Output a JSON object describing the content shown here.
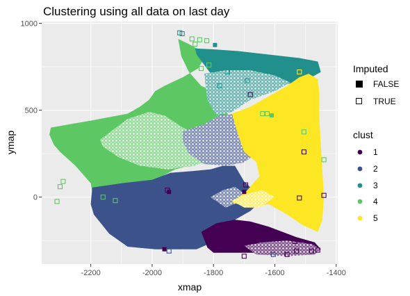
{
  "chart_data": {
    "type": "scatter",
    "title": "Clustering using all data on last day",
    "xlabel": "xmap",
    "ylabel": "ymap",
    "xlim": [
      -2360,
      -1395
    ],
    "ylim": [
      -385,
      1010
    ],
    "x_ticks": [
      -2200,
      -2000,
      -1800,
      -1600,
      -1400
    ],
    "y_ticks": [
      0,
      500,
      1000
    ],
    "x_tick_labels": [
      "-2200",
      "-2000",
      "-1800",
      "-1600",
      "-1400"
    ],
    "y_tick_labels": [
      "0",
      "500",
      "1000"
    ],
    "grid": true,
    "legend_placement": "right",
    "legends": {
      "imputed": {
        "title": "Imputed",
        "entries": [
          {
            "label": "FALSE",
            "marker": "filled-square"
          },
          {
            "label": "TRUE",
            "marker": "open-square"
          }
        ]
      },
      "clust": {
        "title": "clust",
        "entries": [
          {
            "label": "1",
            "color": "#440154"
          },
          {
            "label": "2",
            "color": "#3b528b"
          },
          {
            "label": "3",
            "color": "#21908c"
          },
          {
            "label": "4",
            "color": "#5dc863"
          },
          {
            "label": "5",
            "color": "#fde725"
          }
        ]
      }
    },
    "colors": {
      "1": "#440154",
      "2": "#3b528b",
      "3": "#21908c",
      "4": "#5dc863",
      "5": "#fde725",
      "panel": "#ebebeb",
      "grid": "#ffffff"
    },
    "regions": [
      {
        "cluster": "4",
        "imputed": false,
        "polygon": [
          [
            -1915,
            910
          ],
          [
            -1880,
            880
          ],
          [
            -1850,
            850
          ],
          [
            -1830,
            800
          ],
          [
            -1850,
            740
          ],
          [
            -1900,
            690
          ],
          [
            -1960,
            640
          ],
          [
            -1990,
            610
          ],
          [
            -2010,
            560
          ],
          [
            -2040,
            520
          ],
          [
            -2080,
            480
          ],
          [
            -2200,
            440
          ],
          [
            -2330,
            400
          ],
          [
            -2335,
            360
          ],
          [
            -2320,
            300
          ],
          [
            -2300,
            260
          ],
          [
            -2250,
            180
          ],
          [
            -2200,
            80
          ],
          [
            -2190,
            -30
          ],
          [
            -2140,
            -90
          ],
          [
            -2110,
            -170
          ],
          [
            -2085,
            -260
          ],
          [
            -2050,
            -290
          ],
          [
            -1975,
            -300
          ],
          [
            -1955,
            -215
          ],
          [
            -1970,
            -100
          ],
          [
            -1985,
            20
          ],
          [
            -1990,
            100
          ],
          [
            -1925,
            160
          ],
          [
            -1830,
            200
          ],
          [
            -1775,
            260
          ],
          [
            -1750,
            340
          ],
          [
            -1745,
            420
          ],
          [
            -1760,
            520
          ],
          [
            -1790,
            600
          ],
          [
            -1840,
            640
          ],
          [
            -1880,
            720
          ],
          [
            -1905,
            810
          ]
        ]
      },
      {
        "cluster": "4",
        "imputed": true,
        "polygon": [
          [
            -2170,
            330
          ],
          [
            -2080,
            450
          ],
          [
            -2010,
            490
          ],
          [
            -1960,
            470
          ],
          [
            -1900,
            400
          ],
          [
            -1850,
            360
          ],
          [
            -1810,
            300
          ],
          [
            -1800,
            230
          ],
          [
            -1860,
            180
          ],
          [
            -1950,
            160
          ],
          [
            -2040,
            180
          ],
          [
            -2110,
            230
          ],
          [
            -2160,
            290
          ]
        ]
      },
      {
        "cluster": "2",
        "imputed": false,
        "polygon": [
          [
            -2195,
            55
          ],
          [
            -2100,
            80
          ],
          [
            -2000,
            100
          ],
          [
            -1940,
            140
          ],
          [
            -1870,
            150
          ],
          [
            -1810,
            160
          ],
          [
            -1770,
            180
          ],
          [
            -1730,
            180
          ],
          [
            -1700,
            90
          ],
          [
            -1670,
            40
          ],
          [
            -1650,
            -30
          ],
          [
            -1680,
            -80
          ],
          [
            -1740,
            -140
          ],
          [
            -1785,
            -220
          ],
          [
            -1810,
            -265
          ],
          [
            -1855,
            -300
          ],
          [
            -1990,
            -300
          ],
          [
            -2080,
            -285
          ],
          [
            -2140,
            -210
          ],
          [
            -2190,
            -100
          ],
          [
            -2200,
            -40
          ]
        ]
      },
      {
        "cluster": "2",
        "imputed": true,
        "polygon": [
          [
            -1900,
            380
          ],
          [
            -1830,
            420
          ],
          [
            -1780,
            470
          ],
          [
            -1730,
            480
          ],
          [
            -1710,
            400
          ],
          [
            -1680,
            330
          ],
          [
            -1660,
            250
          ],
          [
            -1700,
            200
          ],
          [
            -1760,
            180
          ],
          [
            -1830,
            190
          ],
          [
            -1880,
            250
          ],
          [
            -1900,
            320
          ]
        ]
      },
      {
        "cluster": "2",
        "imputed": true,
        "polygon": [
          [
            -1810,
            0
          ],
          [
            -1770,
            40
          ],
          [
            -1730,
            60
          ],
          [
            -1700,
            20
          ],
          [
            -1720,
            -30
          ],
          [
            -1760,
            -60
          ]
        ]
      },
      {
        "cluster": "3",
        "imputed": false,
        "polygon": [
          [
            -1860,
            855
          ],
          [
            -1800,
            850
          ],
          [
            -1720,
            840
          ],
          [
            -1620,
            820
          ],
          [
            -1520,
            800
          ],
          [
            -1460,
            780
          ],
          [
            -1450,
            720
          ],
          [
            -1480,
            690
          ],
          [
            -1560,
            650
          ],
          [
            -1650,
            610
          ],
          [
            -1720,
            560
          ],
          [
            -1780,
            470
          ],
          [
            -1790,
            540
          ],
          [
            -1795,
            620
          ],
          [
            -1800,
            690
          ],
          [
            -1830,
            760
          ],
          [
            -1855,
            820
          ]
        ]
      },
      {
        "cluster": "3",
        "imputed": true,
        "polygon": [
          [
            -1830,
            710
          ],
          [
            -1760,
            730
          ],
          [
            -1680,
            730
          ],
          [
            -1600,
            700
          ],
          [
            -1550,
            660
          ],
          [
            -1600,
            610
          ],
          [
            -1680,
            560
          ],
          [
            -1740,
            490
          ],
          [
            -1790,
            470
          ],
          [
            -1820,
            560
          ]
        ]
      },
      {
        "cluster": "5",
        "imputed": false,
        "polygon": [
          [
            -1740,
            480
          ],
          [
            -1680,
            520
          ],
          [
            -1610,
            590
          ],
          [
            -1560,
            640
          ],
          [
            -1520,
            690
          ],
          [
            -1490,
            710
          ],
          [
            -1460,
            680
          ],
          [
            -1455,
            600
          ],
          [
            -1455,
            450
          ],
          [
            -1450,
            300
          ],
          [
            -1445,
            150
          ],
          [
            -1440,
            0
          ],
          [
            -1445,
            -130
          ],
          [
            -1460,
            -200
          ],
          [
            -1510,
            -160
          ],
          [
            -1560,
            -100
          ],
          [
            -1600,
            -60
          ],
          [
            -1620,
            -40
          ],
          [
            -1680,
            -60
          ],
          [
            -1740,
            -30
          ],
          [
            -1690,
            40
          ],
          [
            -1650,
            120
          ],
          [
            -1660,
            200
          ],
          [
            -1700,
            260
          ],
          [
            -1720,
            360
          ]
        ]
      },
      {
        "cluster": "5",
        "imputed": true,
        "polygon": [
          [
            -1740,
            -20
          ],
          [
            -1690,
            20
          ],
          [
            -1640,
            40
          ],
          [
            -1600,
            0
          ],
          [
            -1650,
            -60
          ],
          [
            -1700,
            -60
          ]
        ]
      },
      {
        "cluster": "1",
        "imputed": false,
        "polygon": [
          [
            -1840,
            -200
          ],
          [
            -1820,
            -290
          ],
          [
            -1800,
            -320
          ],
          [
            -1700,
            -320
          ],
          [
            -1600,
            -320
          ],
          [
            -1480,
            -320
          ],
          [
            -1450,
            -300
          ],
          [
            -1470,
            -260
          ],
          [
            -1530,
            -230
          ],
          [
            -1620,
            -170
          ],
          [
            -1680,
            -140
          ],
          [
            -1730,
            -130
          ],
          [
            -1790,
            -150
          ]
        ]
      },
      {
        "cluster": "1",
        "imputed": true,
        "polygon": [
          [
            -1700,
            -280
          ],
          [
            -1640,
            -260
          ],
          [
            -1560,
            -250
          ],
          [
            -1480,
            -270
          ],
          [
            -1450,
            -300
          ],
          [
            -1470,
            -330
          ],
          [
            -1560,
            -340
          ],
          [
            -1660,
            -330
          ]
        ]
      }
    ],
    "points": [
      {
        "x": -1910,
        "y": 945,
        "cluster": "3",
        "imputed": true
      },
      {
        "x": -1902,
        "y": 940,
        "cluster": "3",
        "imputed": true
      },
      {
        "x": -1870,
        "y": 910,
        "cluster": "4",
        "imputed": true
      },
      {
        "x": -1845,
        "y": 905,
        "cluster": "4",
        "imputed": true
      },
      {
        "x": -1822,
        "y": 900,
        "cluster": "4",
        "imputed": true
      },
      {
        "x": -1860,
        "y": 880,
        "cluster": "4",
        "imputed": true
      },
      {
        "x": -1795,
        "y": 875,
        "cluster": "3",
        "imputed": false
      },
      {
        "x": -1815,
        "y": 760,
        "cluster": "4",
        "imputed": true
      },
      {
        "x": -1840,
        "y": 740,
        "cluster": "4",
        "imputed": true
      },
      {
        "x": -1755,
        "y": 720,
        "cluster": "3",
        "imputed": true
      },
      {
        "x": -1690,
        "y": 670,
        "cluster": "3",
        "imputed": true
      },
      {
        "x": -1680,
        "y": 590,
        "cluster": "1",
        "imputed": true
      },
      {
        "x": -1640,
        "y": 480,
        "cluster": "4",
        "imputed": true
      },
      {
        "x": -1625,
        "y": 480,
        "cluster": "4",
        "imputed": true
      },
      {
        "x": -1610,
        "y": 470,
        "cluster": "4",
        "imputed": false
      },
      {
        "x": -1505,
        "y": 375,
        "cluster": "4",
        "imputed": true
      },
      {
        "x": -1505,
        "y": 260,
        "cluster": "1",
        "imputed": true
      },
      {
        "x": -1440,
        "y": 215,
        "cluster": "4",
        "imputed": true
      },
      {
        "x": -1440,
        "y": 10,
        "cluster": "1",
        "imputed": true
      },
      {
        "x": -1520,
        "y": -5,
        "cluster": "1",
        "imputed": true
      },
      {
        "x": -1695,
        "y": 70,
        "cluster": "1",
        "imputed": true
      },
      {
        "x": -1700,
        "y": 30,
        "cluster": "1",
        "imputed": false
      },
      {
        "x": -1950,
        "y": 40,
        "cluster": "1",
        "imputed": true
      },
      {
        "x": -1945,
        "y": 30,
        "cluster": "1",
        "imputed": false
      },
      {
        "x": -1945,
        "y": -310,
        "cluster": "2",
        "imputed": true
      },
      {
        "x": -1960,
        "y": -300,
        "cluster": "1",
        "imputed": false
      },
      {
        "x": -1770,
        "y": -290,
        "cluster": "1",
        "imputed": true
      },
      {
        "x": -1700,
        "y": -340,
        "cluster": "1",
        "imputed": true
      },
      {
        "x": -1605,
        "y": -330,
        "cluster": "2",
        "imputed": true
      },
      {
        "x": -1560,
        "y": -330,
        "cluster": "1",
        "imputed": true
      },
      {
        "x": -1530,
        "y": -310,
        "cluster": "1",
        "imputed": true
      },
      {
        "x": -1480,
        "y": -310,
        "cluster": "1",
        "imputed": true
      },
      {
        "x": -1460,
        "y": -305,
        "cluster": "1",
        "imputed": true
      },
      {
        "x": -1535,
        "y": -255,
        "cluster": "1",
        "imputed": true
      },
      {
        "x": -2310,
        "y": -25,
        "cluster": "4",
        "imputed": true
      },
      {
        "x": -2300,
        "y": 60,
        "cluster": "4",
        "imputed": true
      },
      {
        "x": -2290,
        "y": 90,
        "cluster": "4",
        "imputed": true
      },
      {
        "x": -2160,
        "y": 0,
        "cluster": "4",
        "imputed": true
      },
      {
        "x": -2120,
        "y": -20,
        "cluster": "4",
        "imputed": true
      },
      {
        "x": -1550,
        "y": 160,
        "cluster": "5",
        "imputed": true
      },
      {
        "x": -1520,
        "y": 720,
        "cluster": "5",
        "imputed": true
      },
      {
        "x": -1850,
        "y": 620,
        "cluster": "4",
        "imputed": true
      },
      {
        "x": -1780,
        "y": 640,
        "cluster": "3",
        "imputed": true
      }
    ]
  }
}
